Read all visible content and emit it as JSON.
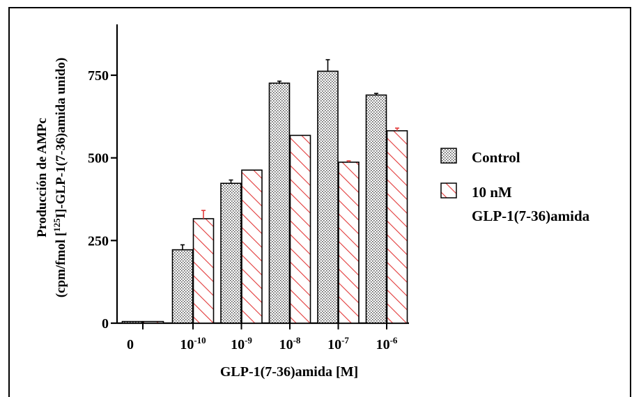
{
  "chart_data": {
    "type": "bar",
    "title": "",
    "xlabel": "GLP-1(7-36)amida [M]",
    "ylabel_line1": "Producción de AMPc",
    "ylabel_line2_pre": "(cpm/fmol [",
    "ylabel_line2_sup": "125",
    "ylabel_line2_post": "I]-GLP-1(7-36)amida unido)",
    "categories": [
      {
        "base": "0",
        "exp": ""
      },
      {
        "base": "10",
        "exp": "-10"
      },
      {
        "base": "10",
        "exp": "-9"
      },
      {
        "base": "10",
        "exp": "-8"
      },
      {
        "base": "10",
        "exp": "-7"
      },
      {
        "base": "10",
        "exp": "-6"
      }
    ],
    "ylim": [
      0,
      900
    ],
    "yticks": [
      0,
      250,
      500,
      750
    ],
    "legend_position": "right",
    "series": [
      {
        "name": "Control",
        "color": "#8c8c8c",
        "pattern": "dots",
        "values": [
          5,
          222,
          423,
          726,
          762,
          690
        ],
        "errors": [
          0,
          15,
          10,
          6,
          35,
          5
        ]
      },
      {
        "name_line1": "10 nM",
        "name_line2": "GLP-1(7-36)amida",
        "color": "#e23a3a",
        "pattern": "hatch",
        "values": [
          5,
          316,
          463,
          568,
          487,
          582
        ],
        "errors": [
          0,
          25,
          0,
          0,
          4,
          8
        ]
      }
    ]
  }
}
